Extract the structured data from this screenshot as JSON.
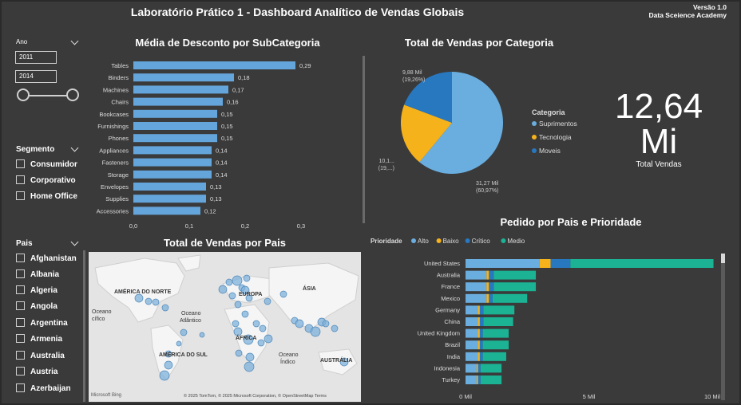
{
  "header": {
    "title": "Laboratório Prático 1 - Dashboard Analítico de Vendas Globais",
    "version": "Versão 1.0",
    "org": "Data Sceience Academy"
  },
  "filters": {
    "year": {
      "label": "Ano",
      "from": "2011",
      "to": "2014"
    },
    "segment": {
      "label": "Segmento",
      "options": [
        "Consumidor",
        "Corporativo",
        "Home Office"
      ]
    },
    "country": {
      "label": "Pais",
      "options": [
        "Afghanistan",
        "Albania",
        "Algeria",
        "Angola",
        "Argentina",
        "Armenia",
        "Australia",
        "Austria",
        "Azerbaijan"
      ]
    }
  },
  "colors": {
    "alto": "#6aaee0",
    "baixo": "#f5b21b",
    "critico": "#2878c0",
    "medio": "#1bb394",
    "bar": "#64a5db"
  },
  "kpi": {
    "value_line1": "12,64",
    "value_line2": "Mi",
    "label": "Total Vendas"
  },
  "discount_chart": {
    "title": "Média de Desconto por SubCategoria",
    "chart_data": {
      "type": "bar",
      "orientation": "horizontal",
      "categories": [
        "Tables",
        "Binders",
        "Machines",
        "Chairs",
        "Bookcases",
        "Furnishings",
        "Phones",
        "Appliances",
        "Fasteners",
        "Storage",
        "Envelopes",
        "Supplies",
        "Accessories"
      ],
      "values": [
        0.29,
        0.18,
        0.17,
        0.16,
        0.15,
        0.15,
        0.15,
        0.14,
        0.14,
        0.14,
        0.13,
        0.13,
        0.12
      ],
      "value_labels": [
        "0,29",
        "0,18",
        "0,17",
        "0,16",
        "0,15",
        "0,15",
        "0,15",
        "0,14",
        "0,14",
        "0,14",
        "0,13",
        "0,13",
        "0,12"
      ],
      "xlim": [
        0,
        0.3
      ],
      "xticks": [
        "0,0",
        "0,1",
        "0,2",
        "0,3"
      ]
    }
  },
  "category_chart": {
    "title": "Total de Vendas por Categoria",
    "legend_title": "Categoria",
    "chart_data": {
      "type": "pie",
      "labels": [
        "Suprimentos",
        "Tecnologia",
        "Moveis"
      ],
      "values": [
        60.97,
        19.77,
        19.26
      ],
      "data_labels": [
        [
          "31,27 Mil",
          "(60,97%)"
        ],
        [
          "10,1...",
          "(19,...)"
        ],
        [
          "9,88 Mil",
          "(19,26%)"
        ]
      ]
    }
  },
  "map_panel": {
    "title": "Total de Vendas por Pais",
    "labels": {
      "na": "AMÉRICA DO NORTE",
      "eu": "EUROPA",
      "as": "ÁSIA",
      "af": "ÁFRICA",
      "sa": "AMÉRICA DO SUL",
      "au": "AUSTRÁLIA",
      "atl1": "Oceano",
      "atl2": "Atlântico",
      "ind1": "Oceano",
      "ind2": "Índico",
      "pac": "Oceano",
      "pac2": "cífico"
    },
    "attribution": "© 2025 TomTom, © 2025 Microsoft Corporation, © OpenStreetMap  Terms",
    "bing": "Microsoft Bing"
  },
  "priority_chart": {
    "title": "Pedido por Pais e Prioridade",
    "legend_title": "Prioridade",
    "chart_data": {
      "type": "bar",
      "orientation": "horizontal",
      "stacked": true,
      "categories": [
        "United States",
        "Australia",
        "France",
        "Mexico",
        "Germany",
        "China",
        "United Kingdom",
        "Brazil",
        "India",
        "Indonesia",
        "Turkey"
      ],
      "series": [
        {
          "name": "Alto",
          "values": [
            3000,
            850,
            850,
            850,
            500,
            500,
            500,
            500,
            500,
            450,
            450
          ]
        },
        {
          "name": "Baixo",
          "values": [
            450,
            100,
            100,
            100,
            80,
            80,
            80,
            80,
            80,
            60,
            60
          ]
        },
        {
          "name": "Crítico",
          "values": [
            800,
            200,
            200,
            150,
            150,
            150,
            120,
            120,
            120,
            100,
            100
          ]
        },
        {
          "name": "Medio",
          "values": [
            5800,
            1700,
            1700,
            1400,
            1250,
            1200,
            1050,
            1050,
            950,
            850,
            850
          ]
        }
      ],
      "xlim": [
        0,
        10000
      ],
      "xticks": [
        "0 Mil",
        "5 Mil",
        "10 Mil"
      ]
    }
  }
}
